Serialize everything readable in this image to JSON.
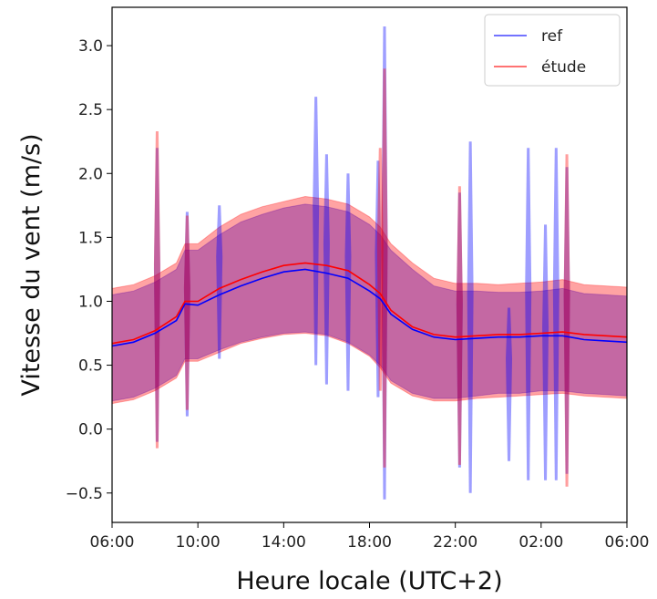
{
  "chart_data": {
    "type": "line",
    "title": "",
    "xlabel": "Heure locale (UTC+2)",
    "ylabel": "Vitesse du vent (m/s)",
    "x_ticks": [
      "06:00",
      "10:00",
      "14:00",
      "18:00",
      "22:00",
      "02:00",
      "06:00"
    ],
    "y_ticks": [
      -0.5,
      0.0,
      0.5,
      1.0,
      1.5,
      2.0,
      2.5,
      3.0
    ],
    "y_tick_labels": [
      "−0.5",
      "0.0",
      "0.5",
      "1.0",
      "1.5",
      "2.0",
      "2.5",
      "3.0"
    ],
    "xlim_hours": [
      0,
      24
    ],
    "ylim": [
      -0.73,
      3.3
    ],
    "grid": false,
    "legend_position": "top-right",
    "x_hours": [
      0,
      1,
      2,
      3,
      3.4,
      4,
      5,
      6,
      7,
      8,
      9,
      10,
      11,
      12,
      12.5,
      13,
      14,
      15,
      16,
      17,
      18,
      19,
      20,
      21,
      22,
      23,
      24
    ],
    "series": [
      {
        "name": "ref",
        "color": "#0000ff",
        "mean": [
          0.65,
          0.68,
          0.75,
          0.85,
          0.98,
          0.97,
          1.05,
          1.12,
          1.18,
          1.23,
          1.25,
          1.22,
          1.18,
          1.08,
          1.02,
          0.9,
          0.78,
          0.72,
          0.7,
          0.71,
          0.72,
          0.72,
          0.73,
          0.73,
          0.7,
          0.69,
          0.68
        ],
        "upper": [
          1.05,
          1.08,
          1.15,
          1.25,
          1.4,
          1.4,
          1.52,
          1.62,
          1.68,
          1.73,
          1.76,
          1.74,
          1.7,
          1.6,
          1.52,
          1.4,
          1.25,
          1.12,
          1.08,
          1.08,
          1.07,
          1.07,
          1.08,
          1.1,
          1.06,
          1.05,
          1.04
        ],
        "lower": [
          0.22,
          0.25,
          0.32,
          0.42,
          0.55,
          0.55,
          0.62,
          0.68,
          0.72,
          0.75,
          0.76,
          0.74,
          0.68,
          0.58,
          0.5,
          0.38,
          0.28,
          0.24,
          0.24,
          0.26,
          0.28,
          0.28,
          0.3,
          0.3,
          0.28,
          0.27,
          0.26
        ],
        "spikes": [
          {
            "hour": 2.1,
            "top": 2.2,
            "bottom": -0.1
          },
          {
            "hour": 3.5,
            "top": 1.7,
            "bottom": 0.1
          },
          {
            "hour": 5.0,
            "top": 1.75,
            "bottom": 0.55
          },
          {
            "hour": 9.5,
            "top": 2.6,
            "bottom": 0.5
          },
          {
            "hour": 10.0,
            "top": 2.15,
            "bottom": 0.35
          },
          {
            "hour": 11.0,
            "top": 2.0,
            "bottom": 0.3
          },
          {
            "hour": 12.7,
            "top": 3.15,
            "bottom": -0.55
          },
          {
            "hour": 12.4,
            "top": 2.1,
            "bottom": 0.25
          },
          {
            "hour": 16.2,
            "top": 1.85,
            "bottom": -0.3
          },
          {
            "hour": 16.7,
            "top": 2.25,
            "bottom": -0.5
          },
          {
            "hour": 18.5,
            "top": 0.95,
            "bottom": -0.25
          },
          {
            "hour": 19.4,
            "top": 2.2,
            "bottom": -0.4
          },
          {
            "hour": 20.2,
            "top": 1.6,
            "bottom": -0.4
          },
          {
            "hour": 20.7,
            "top": 2.2,
            "bottom": -0.4
          },
          {
            "hour": 21.2,
            "top": 2.05,
            "bottom": -0.35
          }
        ]
      },
      {
        "name": "étude",
        "color": "#ff0000",
        "mean": [
          0.67,
          0.7,
          0.77,
          0.88,
          1.0,
          1.0,
          1.1,
          1.17,
          1.23,
          1.28,
          1.3,
          1.28,
          1.24,
          1.13,
          1.06,
          0.93,
          0.8,
          0.74,
          0.72,
          0.73,
          0.74,
          0.74,
          0.75,
          0.76,
          0.74,
          0.73,
          0.72
        ],
        "upper": [
          1.1,
          1.13,
          1.2,
          1.3,
          1.45,
          1.45,
          1.58,
          1.68,
          1.74,
          1.78,
          1.82,
          1.8,
          1.76,
          1.66,
          1.58,
          1.45,
          1.3,
          1.18,
          1.14,
          1.14,
          1.13,
          1.14,
          1.15,
          1.17,
          1.13,
          1.12,
          1.11
        ],
        "lower": [
          0.2,
          0.23,
          0.3,
          0.4,
          0.53,
          0.53,
          0.6,
          0.67,
          0.71,
          0.74,
          0.75,
          0.73,
          0.67,
          0.57,
          0.48,
          0.36,
          0.26,
          0.22,
          0.22,
          0.24,
          0.25,
          0.26,
          0.27,
          0.28,
          0.26,
          0.25,
          0.24
        ],
        "spikes": [
          {
            "hour": 2.1,
            "top": 2.33,
            "bottom": -0.15
          },
          {
            "hour": 3.5,
            "top": 1.67,
            "bottom": 0.15
          },
          {
            "hour": 12.7,
            "top": 2.82,
            "bottom": -0.3
          },
          {
            "hour": 12.5,
            "top": 2.2,
            "bottom": 0.3
          },
          {
            "hour": 16.2,
            "top": 1.9,
            "bottom": -0.28
          },
          {
            "hour": 21.2,
            "top": 2.15,
            "bottom": -0.45
          }
        ]
      }
    ]
  }
}
